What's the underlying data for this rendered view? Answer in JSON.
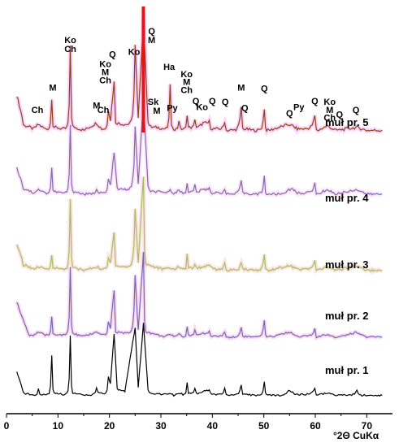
{
  "chart_data": {
    "type": "line",
    "title": "",
    "xlabel": "°2Θ CuKα",
    "ylabel": "",
    "xlim": [
      0,
      75
    ],
    "x_ticks": [
      0,
      10,
      20,
      30,
      40,
      50,
      60,
      70
    ],
    "grid": false,
    "series": [
      {
        "name": "muł pr. 5",
        "color": "#8B4513",
        "highlight_color": "#ff00ff",
        "baseline": 0.22,
        "points": [
          [
            2,
            0.46
          ],
          [
            3,
            0.32
          ],
          [
            4,
            0.25
          ],
          [
            5.2,
            0.23
          ],
          [
            6.2,
            0.26
          ],
          [
            7.5,
            0.23
          ],
          [
            8.8,
            0.44
          ],
          [
            9.5,
            0.24
          ],
          [
            11,
            0.23
          ],
          [
            12.4,
            0.8
          ],
          [
            13.3,
            0.24
          ],
          [
            15,
            0.22
          ],
          [
            17.5,
            0.27
          ],
          [
            18.5,
            0.23
          ],
          [
            19.8,
            0.36
          ],
          [
            20.2,
            0.29
          ],
          [
            20.9,
            0.55
          ],
          [
            21.5,
            0.27
          ],
          [
            23,
            0.26
          ],
          [
            25,
            0.8
          ],
          [
            25.6,
            0.3
          ],
          [
            26.6,
            0.99
          ],
          [
            27.5,
            0.28
          ],
          [
            29.5,
            0.24
          ],
          [
            30.5,
            0.23
          ],
          [
            31.8,
            0.54
          ],
          [
            32.5,
            0.23
          ],
          [
            33.5,
            0.29
          ],
          [
            34.3,
            0.23
          ],
          [
            35.1,
            0.33
          ],
          [
            35.6,
            0.24
          ],
          [
            36.6,
            0.3
          ],
          [
            37.2,
            0.24
          ],
          [
            38.2,
            0.27
          ],
          [
            39.4,
            0.28
          ],
          [
            40.5,
            0.23
          ],
          [
            42.4,
            0.28
          ],
          [
            43,
            0.22
          ],
          [
            45.6,
            0.38
          ],
          [
            46.2,
            0.23
          ],
          [
            48,
            0.22
          ],
          [
            50.1,
            0.37
          ],
          [
            51,
            0.22
          ],
          [
            54.8,
            0.26
          ],
          [
            55.6,
            0.25
          ],
          [
            56.5,
            0.23
          ],
          [
            59.9,
            0.32
          ],
          [
            60.5,
            0.22
          ],
          [
            62.3,
            0.25
          ],
          [
            64,
            0.22
          ],
          [
            68.1,
            0.24
          ],
          [
            70,
            0.22
          ],
          [
            73,
            0.22
          ]
        ]
      },
      {
        "name": "muł pr. 4",
        "color": "#7b6bb0",
        "highlight_color": "#ff66cc",
        "baseline": 0.18,
        "points": [
          [
            2,
            0.4
          ],
          [
            3,
            0.28
          ],
          [
            4,
            0.22
          ],
          [
            5.2,
            0.19
          ],
          [
            6.2,
            0.22
          ],
          [
            7.5,
            0.19
          ],
          [
            8.8,
            0.41
          ],
          [
            9.5,
            0.2
          ],
          [
            11,
            0.19
          ],
          [
            12.4,
            0.76
          ],
          [
            13.3,
            0.2
          ],
          [
            15,
            0.18
          ],
          [
            17.5,
            0.23
          ],
          [
            18.5,
            0.19
          ],
          [
            19.8,
            0.31
          ],
          [
            20.2,
            0.25
          ],
          [
            20.9,
            0.53
          ],
          [
            21.5,
            0.23
          ],
          [
            23,
            0.22
          ],
          [
            25,
            0.76
          ],
          [
            25.6,
            0.26
          ],
          [
            26.6,
            0.99
          ],
          [
            27.5,
            0.24
          ],
          [
            29.5,
            0.2
          ],
          [
            30.5,
            0.19
          ],
          [
            31.8,
            0.21
          ],
          [
            32.5,
            0.19
          ],
          [
            33.5,
            0.21
          ],
          [
            34.3,
            0.19
          ],
          [
            35.1,
            0.28
          ],
          [
            35.6,
            0.2
          ],
          [
            36.6,
            0.26
          ],
          [
            37.2,
            0.2
          ],
          [
            38.2,
            0.22
          ],
          [
            39.4,
            0.24
          ],
          [
            40.5,
            0.19
          ],
          [
            42.4,
            0.23
          ],
          [
            43,
            0.18
          ],
          [
            45.6,
            0.3
          ],
          [
            46.2,
            0.19
          ],
          [
            48,
            0.18
          ],
          [
            50.1,
            0.33
          ],
          [
            51,
            0.18
          ],
          [
            54.8,
            0.23
          ],
          [
            55.6,
            0.22
          ],
          [
            56.5,
            0.19
          ],
          [
            59.9,
            0.27
          ],
          [
            60.5,
            0.18
          ],
          [
            62.3,
            0.22
          ],
          [
            64,
            0.18
          ],
          [
            68.1,
            0.22
          ],
          [
            70,
            0.18
          ],
          [
            73,
            0.18
          ]
        ]
      },
      {
        "name": "muł pr. 3",
        "color": "#a0c060",
        "highlight_color": "#ff6666",
        "baseline": 0.16,
        "points": [
          [
            2,
            0.38
          ],
          [
            3,
            0.26
          ],
          [
            4,
            0.2
          ],
          [
            5.2,
            0.17
          ],
          [
            6.2,
            0.19
          ],
          [
            7.5,
            0.17
          ],
          [
            8.8,
            0.3
          ],
          [
            9.5,
            0.18
          ],
          [
            11,
            0.17
          ],
          [
            12.4,
            0.78
          ],
          [
            13.3,
            0.18
          ],
          [
            15,
            0.16
          ],
          [
            17.5,
            0.19
          ],
          [
            18.5,
            0.17
          ],
          [
            19.8,
            0.27
          ],
          [
            20.2,
            0.22
          ],
          [
            20.9,
            0.5
          ],
          [
            21.5,
            0.2
          ],
          [
            23,
            0.19
          ],
          [
            25,
            0.7
          ],
          [
            25.6,
            0.22
          ],
          [
            26.6,
            0.99
          ],
          [
            27.5,
            0.21
          ],
          [
            29.5,
            0.18
          ],
          [
            30.5,
            0.17
          ],
          [
            31.8,
            0.18
          ],
          [
            32.5,
            0.17
          ],
          [
            33.5,
            0.19
          ],
          [
            34.3,
            0.17
          ],
          [
            35.1,
            0.31
          ],
          [
            35.6,
            0.18
          ],
          [
            36.6,
            0.22
          ],
          [
            37.2,
            0.18
          ],
          [
            38.2,
            0.19
          ],
          [
            39.4,
            0.21
          ],
          [
            40.5,
            0.17
          ],
          [
            42.4,
            0.22
          ],
          [
            43,
            0.16
          ],
          [
            45.6,
            0.22
          ],
          [
            46.2,
            0.17
          ],
          [
            48,
            0.16
          ],
          [
            50.1,
            0.3
          ],
          [
            51,
            0.16
          ],
          [
            54.8,
            0.2
          ],
          [
            55.6,
            0.19
          ],
          [
            56.5,
            0.17
          ],
          [
            59.9,
            0.24
          ],
          [
            60.5,
            0.16
          ],
          [
            62.3,
            0.19
          ],
          [
            64,
            0.16
          ],
          [
            68.1,
            0.2
          ],
          [
            70,
            0.16
          ],
          [
            73,
            0.16
          ]
        ]
      },
      {
        "name": "muł pr. 2",
        "color": "#6a6ab8",
        "highlight_color": "#ff33aa",
        "baseline": 0.14,
        "points": [
          [
            2,
            0.5
          ],
          [
            3,
            0.34
          ],
          [
            4,
            0.22
          ],
          [
            5.2,
            0.16
          ],
          [
            6.2,
            0.19
          ],
          [
            7.5,
            0.16
          ],
          [
            8.8,
            0.35
          ],
          [
            9.5,
            0.17
          ],
          [
            11,
            0.16
          ],
          [
            12.4,
            0.85
          ],
          [
            13.3,
            0.17
          ],
          [
            15,
            0.15
          ],
          [
            17.5,
            0.19
          ],
          [
            18.5,
            0.16
          ],
          [
            19.8,
            0.3
          ],
          [
            20.2,
            0.23
          ],
          [
            20.9,
            0.62
          ],
          [
            21.5,
            0.19
          ],
          [
            23,
            0.18
          ],
          [
            25,
            0.76
          ],
          [
            25.6,
            0.21
          ],
          [
            26.6,
            0.99
          ],
          [
            27.5,
            0.19
          ],
          [
            29.5,
            0.16
          ],
          [
            30.5,
            0.15
          ],
          [
            31.8,
            0.16
          ],
          [
            32.5,
            0.15
          ],
          [
            33.5,
            0.17
          ],
          [
            34.3,
            0.15
          ],
          [
            35.1,
            0.25
          ],
          [
            35.6,
            0.16
          ],
          [
            36.6,
            0.22
          ],
          [
            37.2,
            0.16
          ],
          [
            38.2,
            0.18
          ],
          [
            39.4,
            0.2
          ],
          [
            40.5,
            0.15
          ],
          [
            42.4,
            0.2
          ],
          [
            43,
            0.14
          ],
          [
            45.6,
            0.24
          ],
          [
            46.2,
            0.15
          ],
          [
            48,
            0.14
          ],
          [
            50.1,
            0.31
          ],
          [
            51,
            0.14
          ],
          [
            54.8,
            0.19
          ],
          [
            55.6,
            0.18
          ],
          [
            56.5,
            0.15
          ],
          [
            59.9,
            0.22
          ],
          [
            60.5,
            0.14
          ],
          [
            62.3,
            0.17
          ],
          [
            64,
            0.14
          ],
          [
            68.1,
            0.19
          ],
          [
            70,
            0.14
          ],
          [
            73,
            0.14
          ]
        ]
      },
      {
        "name": "muł pr. 1",
        "color": "#000000",
        "highlight_color": "#000000",
        "baseline": 0.12,
        "points": [
          [
            2,
            0.4
          ],
          [
            3,
            0.22
          ],
          [
            4,
            0.15
          ],
          [
            5.2,
            0.13
          ],
          [
            6.2,
            0.2
          ],
          [
            7.5,
            0.14
          ],
          [
            8.8,
            0.6
          ],
          [
            9.5,
            0.16
          ],
          [
            11,
            0.14
          ],
          [
            12.4,
            0.83
          ],
          [
            13.3,
            0.15
          ],
          [
            15,
            0.13
          ],
          [
            17.5,
            0.22
          ],
          [
            18.5,
            0.15
          ],
          [
            19.8,
            0.34
          ],
          [
            20.2,
            0.26
          ],
          [
            20.9,
            0.85
          ],
          [
            21.5,
            0.2
          ],
          [
            23,
            0.18
          ],
          [
            25,
            0.93
          ],
          [
            25.6,
            0.22
          ],
          [
            26.6,
            0.97
          ],
          [
            27.5,
            0.2
          ],
          [
            29.5,
            0.15
          ],
          [
            30.5,
            0.14
          ],
          [
            31.8,
            0.16
          ],
          [
            32.5,
            0.13
          ],
          [
            33.5,
            0.16
          ],
          [
            34.3,
            0.14
          ],
          [
            35.1,
            0.27
          ],
          [
            35.6,
            0.15
          ],
          [
            36.6,
            0.21
          ],
          [
            37.2,
            0.15
          ],
          [
            38.2,
            0.18
          ],
          [
            39.4,
            0.19
          ],
          [
            40.5,
            0.14
          ],
          [
            42.4,
            0.21
          ],
          [
            43,
            0.13
          ],
          [
            45.6,
            0.25
          ],
          [
            46.2,
            0.14
          ],
          [
            48,
            0.13
          ],
          [
            50.1,
            0.28
          ],
          [
            51,
            0.13
          ],
          [
            54.8,
            0.19
          ],
          [
            55.6,
            0.17
          ],
          [
            56.5,
            0.14
          ],
          [
            59.9,
            0.22
          ],
          [
            60.5,
            0.13
          ],
          [
            62.3,
            0.16
          ],
          [
            64,
            0.13
          ],
          [
            68.1,
            0.18
          ],
          [
            70,
            0.13
          ],
          [
            73,
            0.13
          ]
        ]
      }
    ],
    "peak_labels": [
      {
        "text": "Ko",
        "x": 12.4,
        "row": 0
      },
      {
        "text": "Ch",
        "x": 12.4,
        "row": 1
      },
      {
        "text": "Q",
        "x": 28.2,
        "row": -1
      },
      {
        "text": "M",
        "x": 28.2,
        "row": 0
      },
      {
        "text": "Q",
        "x": 20.6,
        "row": 1.6
      },
      {
        "text": "Ko",
        "x": 24.8,
        "row": 1.3
      },
      {
        "text": "Ko",
        "x": 19.2,
        "row": 2.7
      },
      {
        "text": "M",
        "x": 19.2,
        "row": 3.6
      },
      {
        "text": "Ch",
        "x": 19.2,
        "row": 4.5
      },
      {
        "text": "Ha",
        "x": 31.6,
        "row": 3.0
      },
      {
        "text": "Ko",
        "x": 35.0,
        "row": 3.8
      },
      {
        "text": "M",
        "x": 35.0,
        "row": 4.7
      },
      {
        "text": "Ch",
        "x": 35.0,
        "row": 5.6
      },
      {
        "text": "M",
        "x": 9.0,
        "row": 5.3
      },
      {
        "text": "M",
        "x": 45.6,
        "row": 5.3
      },
      {
        "text": "Q",
        "x": 50.1,
        "row": 5.4
      },
      {
        "text": "Sk",
        "x": 28.5,
        "row": 6.9
      },
      {
        "text": "Py",
        "x": 32.2,
        "row": 7.6
      },
      {
        "text": "M",
        "x": 29.2,
        "row": 7.9
      },
      {
        "text": "Q",
        "x": 36.8,
        "row": 6.8
      },
      {
        "text": "Q",
        "x": 40.0,
        "row": 6.8
      },
      {
        "text": "Q",
        "x": 42.5,
        "row": 6.9
      },
      {
        "text": "Ko",
        "x": 38.0,
        "row": 7.5
      },
      {
        "text": "Q",
        "x": 46.3,
        "row": 7.6
      },
      {
        "text": "M",
        "x": 17.5,
        "row": 7.3
      },
      {
        "text": "Ch",
        "x": 18.8,
        "row": 7.8
      },
      {
        "text": "Ch",
        "x": 6.0,
        "row": 7.8
      },
      {
        "text": "Q",
        "x": 59.9,
        "row": 6.8
      },
      {
        "text": "Ko",
        "x": 62.8,
        "row": 6.9
      },
      {
        "text": "M",
        "x": 62.8,
        "row": 7.8
      },
      {
        "text": "Ch",
        "x": 62.8,
        "row": 8.7
      },
      {
        "text": "Q",
        "x": 64.7,
        "row": 8.3
      },
      {
        "text": "Py",
        "x": 56.8,
        "row": 7.5
      },
      {
        "text": "Q",
        "x": 55.0,
        "row": 8.2
      },
      {
        "text": "Q",
        "x": 67.9,
        "row": 7.8
      }
    ]
  }
}
